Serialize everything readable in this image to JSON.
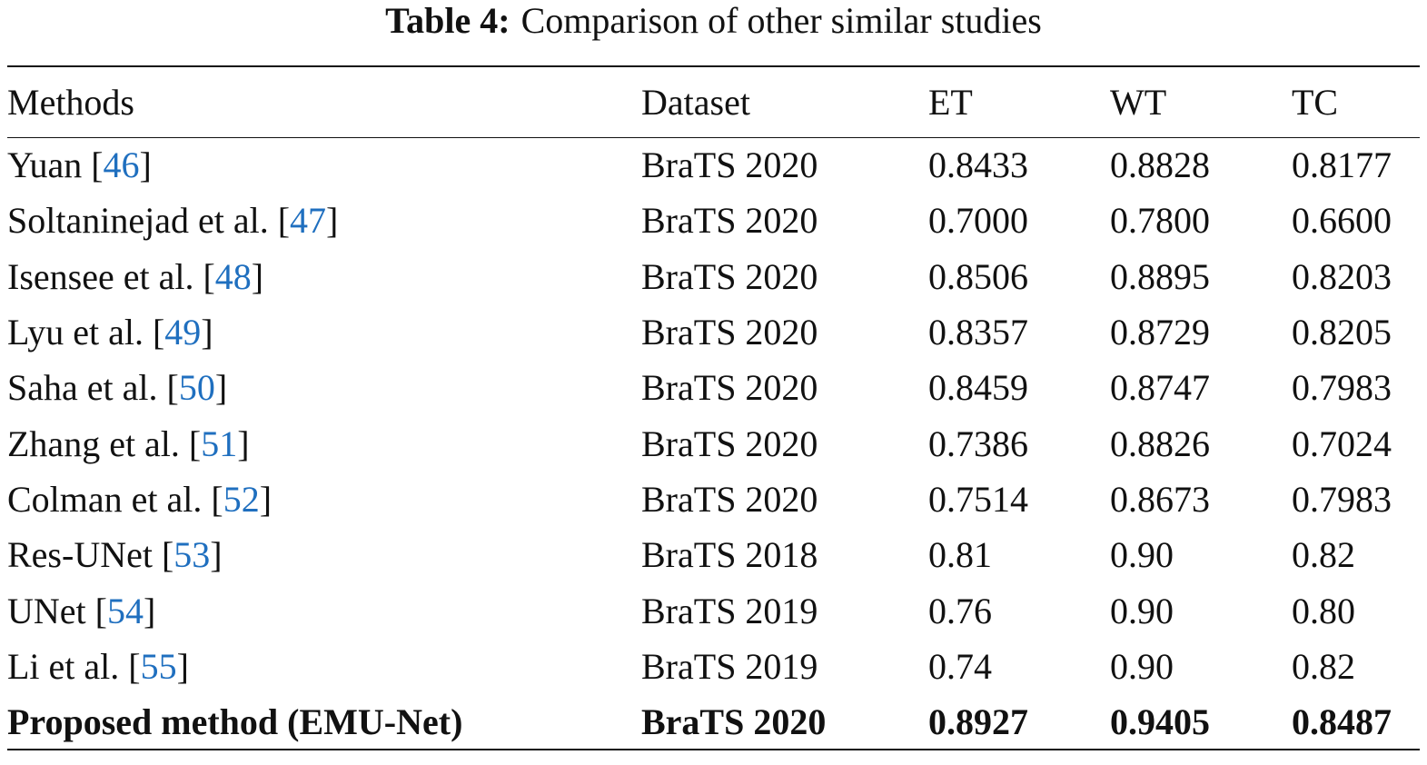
{
  "caption": {
    "label": "Table 4:",
    "text": "Comparison of other similar studies"
  },
  "table": {
    "header": [
      "Methods",
      "Dataset",
      "ET",
      "WT",
      "TC"
    ],
    "rows": [
      [
        "Yuan [46]",
        "BraTS 2020",
        "0.8433",
        "0.8828",
        "0.8177"
      ],
      [
        "Soltaninejad et al. [47]",
        "BraTS 2020",
        "0.7000",
        "0.7800",
        "0.6600"
      ],
      [
        "Isensee et al. [48]",
        "BraTS 2020",
        "0.8506",
        "0.8895",
        "0.8203"
      ],
      [
        "Lyu et al. [49]",
        "BraTS 2020",
        "0.8357",
        "0.8729",
        "0.8205"
      ],
      [
        "Saha et al. [50]",
        "BraTS 2020",
        "0.8459",
        "0.8747",
        "0.7983"
      ],
      [
        "Zhang et al. [51]",
        "BraTS 2020",
        "0.7386",
        "0.8826",
        "0.7024"
      ],
      [
        "Colman et al. [52]",
        "BraTS 2020",
        "0.7514",
        "0.8673",
        "0.7983"
      ],
      [
        "Res-UNet [53]",
        "BraTS 2018",
        "0.81",
        "0.90",
        "0.82"
      ],
      [
        "UNet [54]",
        "BraTS 2019",
        "0.76",
        "0.90",
        "0.80"
      ],
      [
        "Li et al. [55]",
        "BraTS 2019",
        "0.74",
        "0.90",
        "0.82"
      ],
      [
        "Proposed method (EMU-Net)",
        "BraTS 2020",
        "0.8927",
        "0.9405",
        "0.8487"
      ]
    ]
  }
}
